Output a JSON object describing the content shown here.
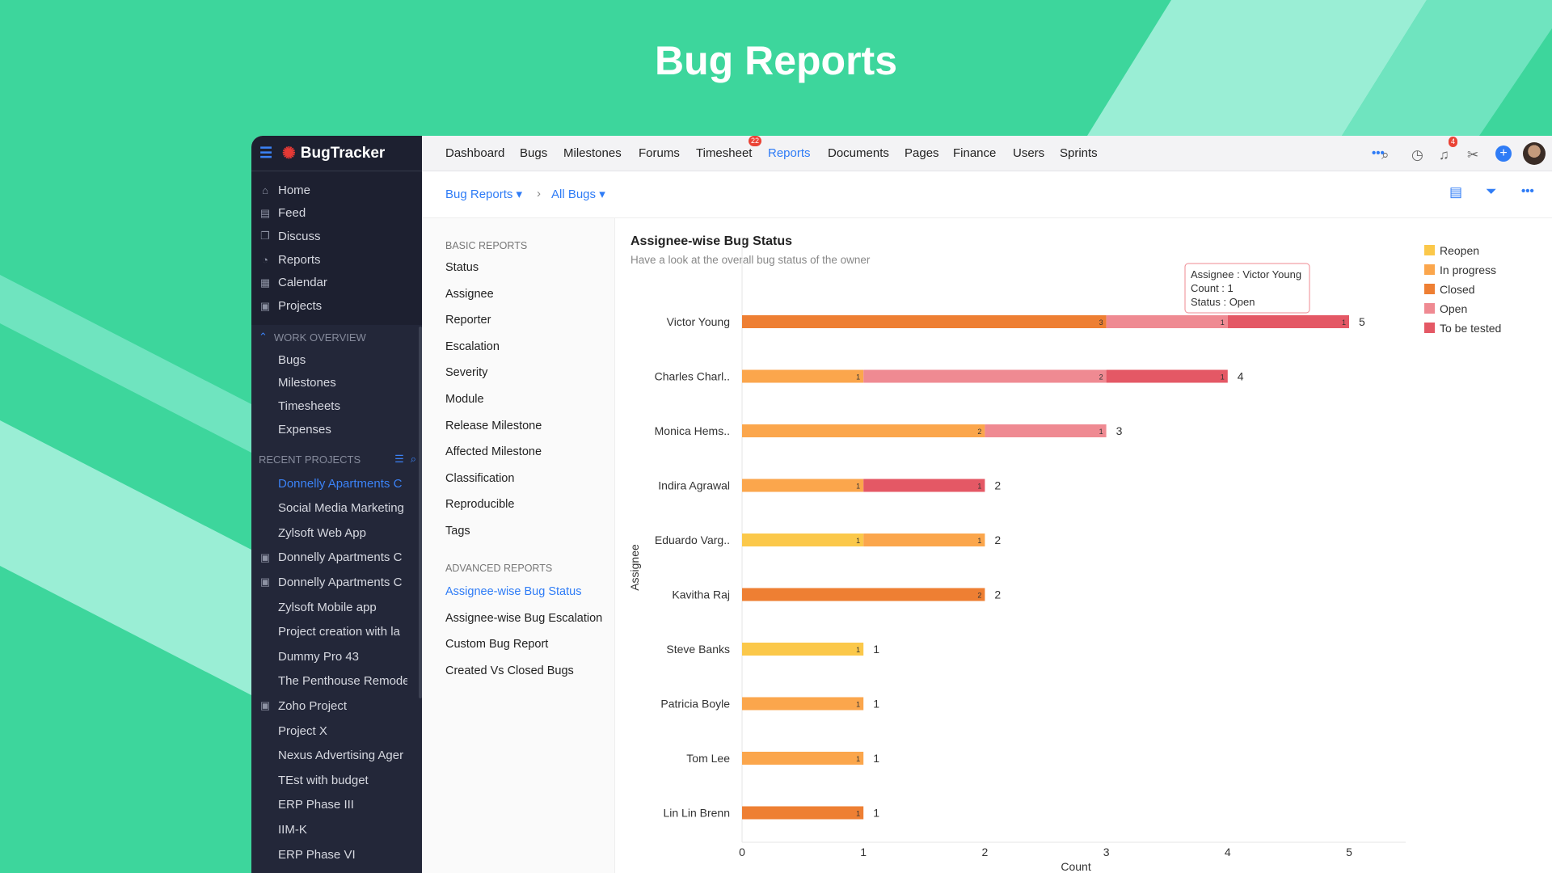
{
  "hero_title": "Bug Reports",
  "app": {
    "name": "BugTracker"
  },
  "sidebar": {
    "items": [
      {
        "label": "Home",
        "icon": "home-icon",
        "glyph": "⌂"
      },
      {
        "label": "Feed",
        "icon": "feed-icon",
        "glyph": "▤"
      },
      {
        "label": "Discuss",
        "icon": "discuss-icon",
        "glyph": "❐"
      },
      {
        "label": "Reports",
        "icon": "reports-icon",
        "glyph": "◔"
      },
      {
        "label": "Calendar",
        "icon": "calendar-icon",
        "glyph": "▦"
      },
      {
        "label": "Projects",
        "icon": "projects-icon",
        "glyph": "▣"
      }
    ],
    "work_overview": {
      "title": "WORK OVERVIEW",
      "items": [
        "Bugs",
        "Milestones",
        "Timesheets",
        "Expenses"
      ]
    },
    "recent_projects": {
      "title": "RECENT PROJECTS",
      "items": [
        {
          "label": "Donnelly Apartments C",
          "active": true,
          "icon": false
        },
        {
          "label": "Social Media Marketing",
          "icon": false
        },
        {
          "label": "Zylsoft Web App",
          "icon": false
        },
        {
          "label": "Donnelly Apartments C",
          "icon": true
        },
        {
          "label": "Donnelly Apartments C",
          "icon": true
        },
        {
          "label": "Zylsoft Mobile app",
          "icon": false
        },
        {
          "label": "Project creation with la",
          "icon": false
        },
        {
          "label": "Dummy Pro 43",
          "icon": false
        },
        {
          "label": "The Penthouse Remode",
          "icon": false
        },
        {
          "label": "Zoho Project",
          "icon": true
        },
        {
          "label": "Project X",
          "icon": false
        },
        {
          "label": "Nexus Advertising Ager",
          "icon": false
        },
        {
          "label": "TEst with budget",
          "icon": false
        },
        {
          "label": "ERP Phase III",
          "icon": false
        },
        {
          "label": "IIM-K",
          "icon": false
        },
        {
          "label": "ERP Phase VI",
          "icon": false
        }
      ]
    }
  },
  "topnav": {
    "items": [
      "Dashboard",
      "Bugs",
      "Milestones",
      "Forums",
      "Timesheet",
      "Reports",
      "Documents",
      "Pages",
      "Finance",
      "Users",
      "Sprints"
    ],
    "active": "Reports",
    "more": "•••",
    "timesheet_badge": "22",
    "notification_badge": "4"
  },
  "breadcrumb": {
    "first": "Bug Reports ▾",
    "sep": "›",
    "second": "All Bugs ▾"
  },
  "report_menu": {
    "basic_title": "BASIC REPORTS",
    "basic": [
      "Status",
      "Assignee",
      "Reporter",
      "Escalation",
      "Severity",
      "Module",
      "Release Milestone",
      "Affected Milestone",
      "Classification",
      "Reproducible",
      "Tags"
    ],
    "advanced_title": "ADVANCED REPORTS",
    "advanced": [
      "Assignee-wise Bug Status",
      "Assignee-wise Bug Escalation",
      "Custom Bug Report",
      "Created Vs Closed Bugs"
    ],
    "active": "Assignee-wise Bug Status"
  },
  "report": {
    "title": "Assignee-wise Bug Status",
    "subtitle": "Have a look at the overall bug status of the owner"
  },
  "tooltip": {
    "line1": "Assignee : Victor Young",
    "line2": "Count : 1",
    "line3": "Status : Open"
  },
  "chart_data": {
    "type": "bar",
    "orientation": "horizontal",
    "stacked": true,
    "title": "Assignee-wise Bug Status",
    "ylabel": "Assignee",
    "xlabel": "Count",
    "xlim": [
      0,
      5.5
    ],
    "xticks": [
      0,
      1,
      2,
      3,
      4,
      5
    ],
    "categories": [
      "Victor Young",
      "Charles Charl..",
      "Monica Hems..",
      "Indira Agrawal",
      "Eduardo Varg..",
      "Kavitha Raj",
      "Steve Banks",
      "Patricia Boyle",
      "Tom Lee",
      "Lin Lin Brenn"
    ],
    "series": [
      {
        "name": "Reopen",
        "color": "#fbc84a",
        "values": [
          0,
          0,
          0,
          0,
          1,
          0,
          1,
          0,
          0,
          0
        ]
      },
      {
        "name": "In progress",
        "color": "#fba64c",
        "values": [
          0,
          1,
          2,
          1,
          1,
          0,
          0,
          1,
          1,
          0
        ]
      },
      {
        "name": "Closed",
        "color": "#ee7f33",
        "values": [
          3,
          0,
          0,
          0,
          0,
          2,
          0,
          0,
          0,
          1
        ]
      },
      {
        "name": "Open",
        "color": "#ef8a92",
        "values": [
          1,
          2,
          1,
          0,
          0,
          0,
          0,
          0,
          0,
          0
        ]
      },
      {
        "name": "To be tested",
        "color": "#e45865",
        "values": [
          1,
          1,
          0,
          1,
          0,
          0,
          0,
          0,
          0,
          0
        ]
      }
    ],
    "totals": [
      5,
      4,
      3,
      2,
      2,
      2,
      1,
      1,
      1,
      1
    ],
    "legend": "top-right"
  }
}
